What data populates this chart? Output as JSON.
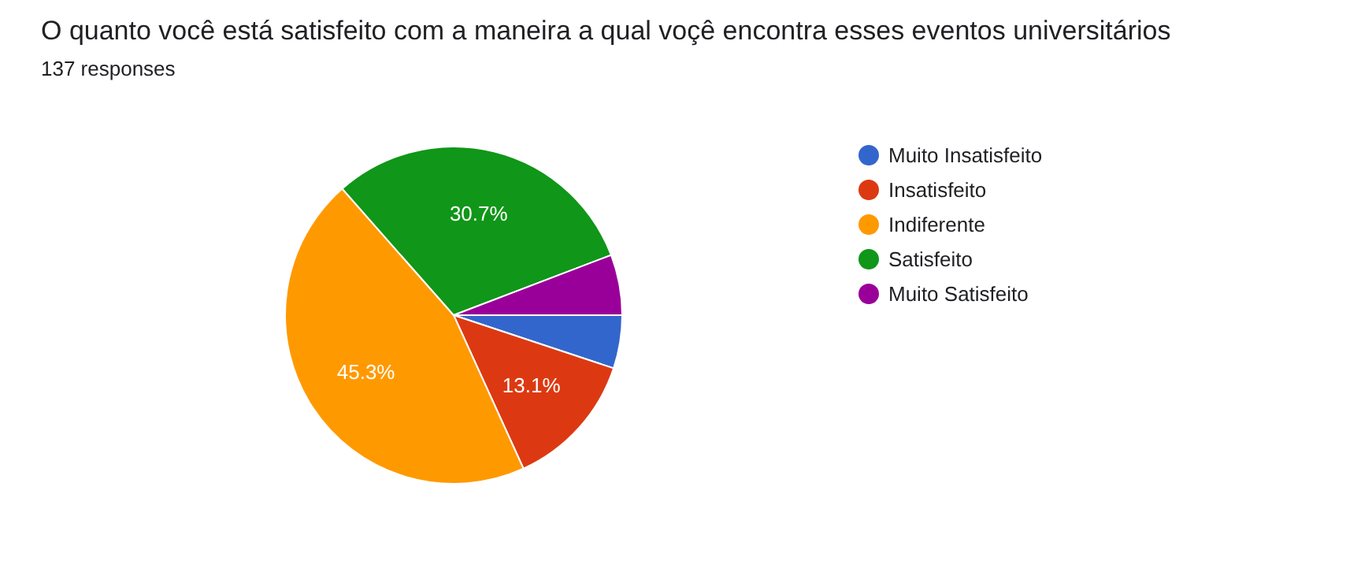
{
  "chart_data": {
    "type": "pie",
    "title": "O quanto você está satisfeito com a maneira a qual voçê encontra esses eventos universitários",
    "subtitle": "137 responses",
    "categories": [
      "Muito Insatisfeito",
      "Insatisfeito",
      "Indiferente",
      "Satisfeito",
      "Muito Satisfeito"
    ],
    "values": [
      5.1,
      13.1,
      45.3,
      30.7,
      5.8
    ],
    "colors": [
      "#3366cc",
      "#dc3912",
      "#ff9900",
      "#109618",
      "#990099"
    ],
    "value_labels": [
      null,
      "13.1%",
      "45.3%",
      "30.7%",
      null
    ],
    "legend": "right"
  }
}
